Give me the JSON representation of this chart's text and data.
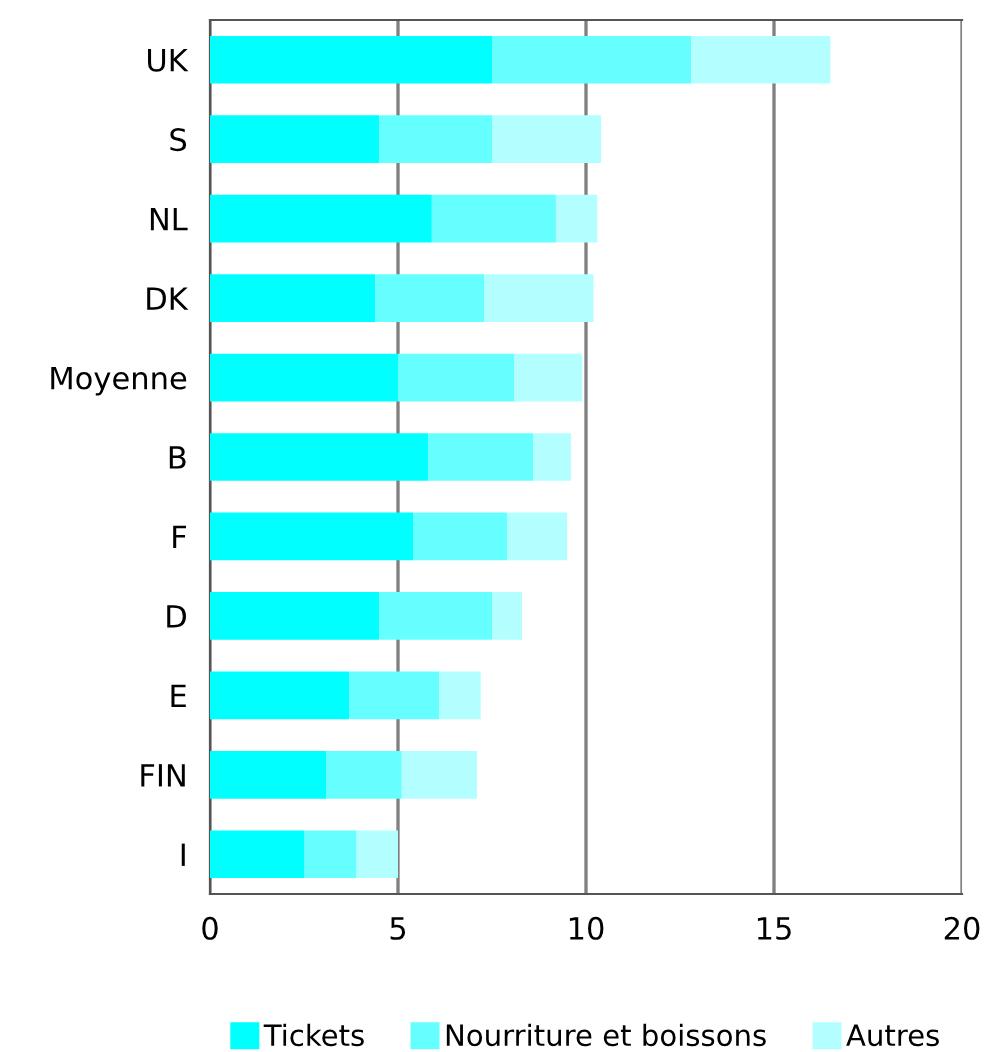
{
  "chart_data": {
    "type": "bar",
    "orientation": "horizontal",
    "stacked": true,
    "categories": [
      "UK",
      "S",
      "NL",
      "DK",
      "Moyenne",
      "B",
      "F",
      "D",
      "E",
      "FIN",
      "I"
    ],
    "series": [
      {
        "name": "Tickets",
        "color": "#00ffff",
        "values": [
          7.5,
          4.5,
          5.9,
          4.4,
          5.0,
          5.8,
          5.4,
          4.5,
          3.7,
          3.1,
          2.5
        ]
      },
      {
        "name": "Nourriture et boissons",
        "color": "#66ffff",
        "values": [
          5.3,
          3.0,
          3.3,
          2.9,
          3.1,
          2.8,
          2.5,
          3.0,
          2.4,
          2.0,
          1.4
        ]
      },
      {
        "name": "Autres",
        "color": "#b3ffff",
        "values": [
          3.7,
          2.9,
          1.1,
          2.9,
          1.8,
          1.0,
          1.6,
          0.8,
          1.1,
          2.0,
          1.1
        ]
      }
    ],
    "xlim": [
      0,
      20
    ],
    "xticks": [
      0,
      5,
      10,
      15,
      20
    ],
    "grid": "x",
    "legend": "bottom"
  }
}
